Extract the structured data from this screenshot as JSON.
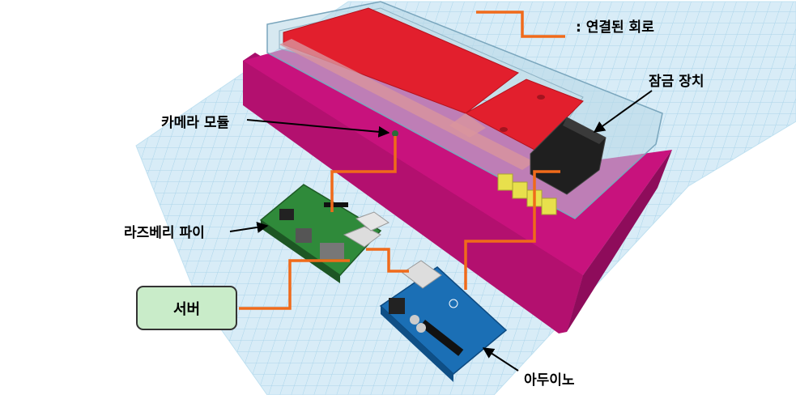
{
  "legend": {
    "label": ": 연결된 회로"
  },
  "labels": {
    "lock_device": "잠금 장치",
    "camera_module": "카메라 모듈",
    "raspberry_pi": "라즈베리 파이",
    "server": "서버",
    "arduino": "아두이노"
  },
  "colors": {
    "circuit": "#f06a1a",
    "enclosure": "#c0117a",
    "enclosure_dark": "#9e0e66",
    "lid_red": "#e0202e",
    "workplane": "#cfe7f4",
    "grid_line": "#9fcde6",
    "server_fill": "#c9ecc9",
    "arduino_blue": "#1b6fb5",
    "raspberry_green": "#2f8a3a"
  }
}
